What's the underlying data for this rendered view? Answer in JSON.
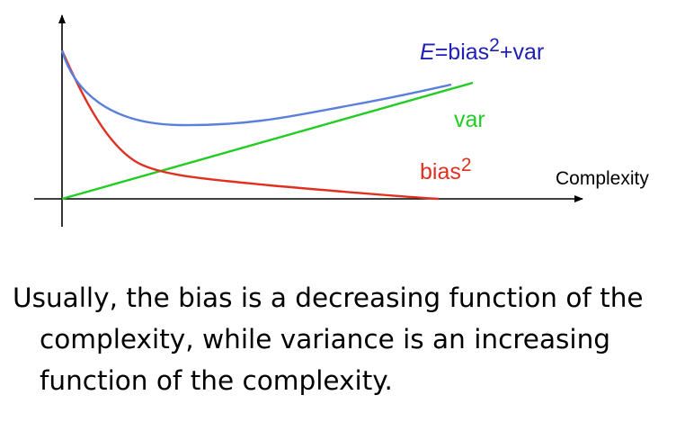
{
  "diagram": {
    "labels": {
      "total_error_italic": "E",
      "total_error_base": "=bias",
      "total_error_sup": "2",
      "total_error_tail": "+var",
      "variance": "var",
      "bias_base": "bias",
      "bias_sup": "2",
      "x_axis": "Complexity"
    },
    "colors": {
      "total_error": "#5b7fdc",
      "total_error_label": "#2020b8",
      "variance": "#22cc22",
      "bias": "#e03020",
      "axes": "#000000"
    }
  },
  "caption": {
    "text": "Usually, the bias is a decreasing function of the complexity, while variance is an increasing function of the complexity."
  }
}
